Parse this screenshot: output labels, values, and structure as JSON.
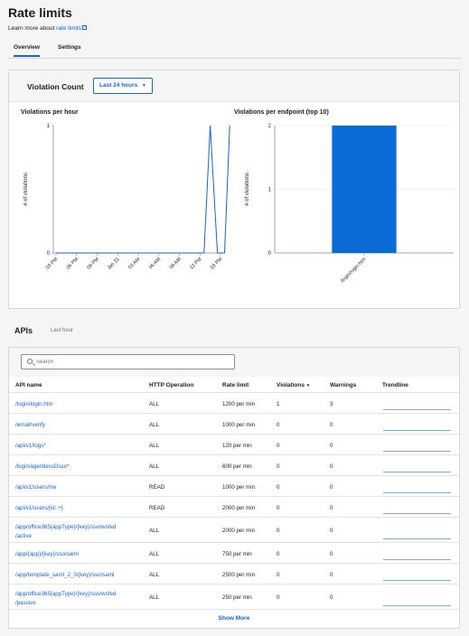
{
  "page": {
    "title": "Rate limits",
    "learn_prefix": "Learn more about",
    "learn_link": "rate limits"
  },
  "tabs": [
    {
      "label": "Overview",
      "active": true
    },
    {
      "label": "Settings",
      "active": false
    }
  ],
  "violation_count": {
    "title": "Violation Count",
    "range_label": "Last 24 hours",
    "caret": "▼"
  },
  "chart_data": [
    {
      "type": "line",
      "title": "Violations per hour",
      "ylabel": "# of violations",
      "xlabel": "",
      "x_ticks": [
        "03 PM",
        "06 PM",
        "09 PM",
        "Jan 31",
        "03 AM",
        "06 AM",
        "09 AM",
        "12 PM",
        "03 PM"
      ],
      "y_ticks": [
        "0",
        "1"
      ],
      "ylim": [
        0,
        1
      ],
      "series": [
        {
          "values": [
            [
              0,
              0
            ],
            [
              1,
              0
            ],
            [
              2,
              0
            ],
            [
              3,
              0
            ],
            [
              4,
              0
            ],
            [
              5,
              0
            ],
            [
              6,
              0
            ],
            [
              7,
              0
            ],
            [
              7.2,
              0
            ],
            [
              7.5,
              1
            ],
            [
              7.85,
              0
            ],
            [
              8.2,
              0
            ],
            [
              8.45,
              1
            ]
          ]
        }
      ],
      "color": "#1662dd",
      "grid": false
    },
    {
      "type": "bar",
      "title": "Violations per endpoint (top 10)",
      "ylabel": "# of violations",
      "xlabel": "",
      "categories": [
        "/login/login.htm"
      ],
      "values": [
        2
      ],
      "y_ticks": [
        "0",
        "1",
        "2"
      ],
      "ylim": [
        0,
        2
      ],
      "color": "#0b6bd6",
      "grid": true
    }
  ],
  "apis": {
    "title": "APIs",
    "subtitle": "Last hour",
    "search_placeholder": "Search",
    "columns": [
      "API name",
      "HTTP Operation",
      "Rate limit",
      "Violations",
      "Warnings",
      "Trendline"
    ],
    "sort_indicator": "▼",
    "rows": [
      {
        "name": "/login/login.htm",
        "op": "ALL",
        "limit": "1200 per min",
        "violations": "1",
        "warnings": "3"
      },
      {
        "name": "/email/verify",
        "op": "ALL",
        "limit": "1000 per min",
        "violations": "0",
        "warnings": "0"
      },
      {
        "name": "/api/v1/logs*",
        "op": "ALL",
        "limit": "120 per min",
        "violations": "0",
        "warnings": "0"
      },
      {
        "name": "/login/agentlessDsso*",
        "op": "ALL",
        "limit": "600 per min",
        "violations": "0",
        "warnings": "0"
      },
      {
        "name": "/api/v1/users/me",
        "op": "READ",
        "limit": "1000 per min",
        "violations": "0",
        "warnings": "0"
      },
      {
        "name": "/api/v1/users/{id:.+}",
        "op": "READ",
        "limit": "2000 per min",
        "violations": "0",
        "warnings": "0"
      },
      {
        "name1": "/app/office365{appType}/{key}/sso/wsfed",
        "name2": "/active",
        "op": "ALL",
        "limit": "2000 per min",
        "violations": "0",
        "warnings": "0"
      },
      {
        "name": "/app/{app}/{key}/sso/saml",
        "op": "ALL",
        "limit": "750 per min",
        "violations": "0",
        "warnings": "0"
      },
      {
        "name": "/app/template_saml_2_0/{key}/sso/saml",
        "op": "ALL",
        "limit": "2500 per min",
        "violations": "0",
        "warnings": "0"
      },
      {
        "name1": "/app/office365{appType}/{key}/sso/wsfed",
        "name2": "/passive",
        "op": "ALL",
        "limit": "250 per min",
        "violations": "0",
        "warnings": "0"
      }
    ],
    "show_more": "Show More"
  },
  "colors": {
    "accent": "#1662dd",
    "bar": "#0b6bd6",
    "trend": "#7bb0e0"
  }
}
